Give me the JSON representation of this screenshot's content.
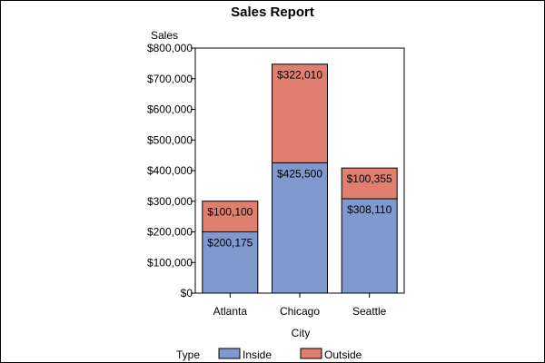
{
  "chart_data": {
    "type": "bar",
    "stacked": true,
    "title": "Sales Report",
    "xlabel": "City",
    "ylabel": "Sales",
    "categories": [
      "Atlanta",
      "Chicago",
      "Seattle"
    ],
    "series": [
      {
        "name": "Inside",
        "color": "#7f99cf",
        "values": [
          200175,
          425500,
          308110
        ],
        "labels": [
          "$200,175",
          "$425,500",
          "$308,110"
        ]
      },
      {
        "name": "Outside",
        "color": "#e07f6f",
        "values": [
          100100,
          322010,
          100355
        ],
        "labels": [
          "$100,100",
          "$322,010",
          "$100,355"
        ]
      }
    ],
    "ylim": [
      0,
      800000
    ],
    "yticks": [
      0,
      100000,
      200000,
      300000,
      400000,
      500000,
      600000,
      700000,
      800000
    ],
    "ytick_labels": [
      "$0",
      "$100,000",
      "$200,000",
      "$300,000",
      "$400,000",
      "$500,000",
      "$600,000",
      "$700,000",
      "$800,000"
    ],
    "legend": {
      "title": "Type",
      "position": "bottom"
    }
  }
}
